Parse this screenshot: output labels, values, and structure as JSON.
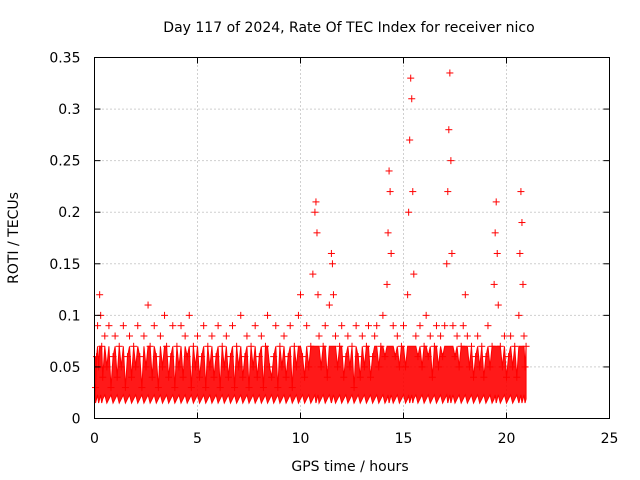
{
  "chart_data": {
    "type": "scatter",
    "title": "Day 117 of 2024, Rate Of TEC Index for receiver nico",
    "xlabel": "GPS time / hours",
    "ylabel": "ROTI / TECUs",
    "xlim": [
      0,
      25
    ],
    "ylim": [
      0,
      0.35
    ],
    "xticks": [
      0,
      5,
      10,
      15,
      20,
      25
    ],
    "xtick_labels": [
      "0",
      "5",
      "10",
      "15",
      "20",
      "25"
    ],
    "yticks": [
      0,
      0.05,
      0.1,
      0.15,
      0.2,
      0.25,
      0.3,
      0.35
    ],
    "ytick_labels": [
      "0",
      "0.05",
      "0.1",
      "0.15",
      "0.2",
      "0.25",
      "0.3",
      "0.35"
    ],
    "grid": true,
    "marker": "plus",
    "color": "#ff0000",
    "series": [
      {
        "name": "ROTI",
        "points": [
          [
            0.05,
            0.03
          ],
          [
            0.1,
            0.06
          ],
          [
            0.15,
            0.09
          ],
          [
            0.2,
            0.05
          ],
          [
            0.25,
            0.12
          ],
          [
            0.3,
            0.1
          ],
          [
            0.35,
            0.07
          ],
          [
            0.4,
            0.04
          ],
          [
            0.5,
            0.08
          ],
          [
            0.6,
            0.05
          ],
          [
            0.7,
            0.09
          ],
          [
            0.8,
            0.03
          ],
          [
            0.9,
            0.06
          ],
          [
            1.0,
            0.08
          ],
          [
            1.1,
            0.04
          ],
          [
            1.2,
            0.07
          ],
          [
            1.3,
            0.05
          ],
          [
            1.4,
            0.09
          ],
          [
            1.5,
            0.03
          ],
          [
            1.6,
            0.06
          ],
          [
            1.7,
            0.08
          ],
          [
            1.8,
            0.04
          ],
          [
            1.9,
            0.07
          ],
          [
            2.0,
            0.05
          ],
          [
            2.1,
            0.09
          ],
          [
            2.2,
            0.06
          ],
          [
            2.3,
            0.03
          ],
          [
            2.4,
            0.08
          ],
          [
            2.5,
            0.05
          ],
          [
            2.6,
            0.11
          ],
          [
            2.7,
            0.07
          ],
          [
            2.8,
            0.04
          ],
          [
            2.9,
            0.09
          ],
          [
            3.0,
            0.06
          ],
          [
            3.1,
            0.03
          ],
          [
            3.2,
            0.08
          ],
          [
            3.3,
            0.05
          ],
          [
            3.4,
            0.1
          ],
          [
            3.5,
            0.07
          ],
          [
            3.6,
            0.04
          ],
          [
            3.7,
            0.06
          ],
          [
            3.8,
            0.09
          ],
          [
            3.9,
            0.03
          ],
          [
            4.0,
            0.07
          ],
          [
            4.1,
            0.05
          ],
          [
            4.2,
            0.09
          ],
          [
            4.3,
            0.04
          ],
          [
            4.4,
            0.08
          ],
          [
            4.5,
            0.06
          ],
          [
            4.6,
            0.1
          ],
          [
            4.7,
            0.03
          ],
          [
            4.8,
            0.07
          ],
          [
            4.9,
            0.05
          ],
          [
            5.0,
            0.08
          ],
          [
            5.1,
            0.04
          ],
          [
            5.2,
            0.06
          ],
          [
            5.3,
            0.09
          ],
          [
            5.4,
            0.03
          ],
          [
            5.5,
            0.07
          ],
          [
            5.6,
            0.05
          ],
          [
            5.7,
            0.08
          ],
          [
            5.8,
            0.04
          ],
          [
            5.9,
            0.06
          ],
          [
            6.0,
            0.09
          ],
          [
            6.1,
            0.03
          ],
          [
            6.2,
            0.07
          ],
          [
            6.3,
            0.05
          ],
          [
            6.4,
            0.08
          ],
          [
            6.5,
            0.04
          ],
          [
            6.6,
            0.06
          ],
          [
            6.7,
            0.09
          ],
          [
            6.8,
            0.03
          ],
          [
            6.9,
            0.07
          ],
          [
            7.0,
            0.05
          ],
          [
            7.1,
            0.1
          ],
          [
            7.2,
            0.04
          ],
          [
            7.3,
            0.06
          ],
          [
            7.4,
            0.08
          ],
          [
            7.5,
            0.03
          ],
          [
            7.6,
            0.07
          ],
          [
            7.7,
            0.05
          ],
          [
            7.8,
            0.09
          ],
          [
            7.9,
            0.04
          ],
          [
            8.0,
            0.06
          ],
          [
            8.1,
            0.08
          ],
          [
            8.2,
            0.03
          ],
          [
            8.3,
            0.07
          ],
          [
            8.4,
            0.1
          ],
          [
            8.5,
            0.05
          ],
          [
            8.6,
            0.04
          ],
          [
            8.7,
            0.06
          ],
          [
            8.8,
            0.09
          ],
          [
            8.9,
            0.03
          ],
          [
            9.0,
            0.07
          ],
          [
            9.1,
            0.05
          ],
          [
            9.2,
            0.08
          ],
          [
            9.3,
            0.04
          ],
          [
            9.4,
            0.06
          ],
          [
            9.5,
            0.09
          ],
          [
            9.6,
            0.03
          ],
          [
            9.7,
            0.07
          ],
          [
            9.8,
            0.05
          ],
          [
            9.9,
            0.1
          ],
          [
            10.0,
            0.12
          ],
          [
            10.1,
            0.06
          ],
          [
            10.2,
            0.04
          ],
          [
            10.3,
            0.09
          ],
          [
            10.4,
            0.05
          ],
          [
            10.5,
            0.07
          ],
          [
            10.6,
            0.14
          ],
          [
            10.7,
            0.2
          ],
          [
            10.75,
            0.21
          ],
          [
            10.8,
            0.18
          ],
          [
            10.85,
            0.12
          ],
          [
            10.9,
            0.08
          ],
          [
            11.0,
            0.05
          ],
          [
            11.1,
            0.07
          ],
          [
            11.2,
            0.09
          ],
          [
            11.3,
            0.04
          ],
          [
            11.4,
            0.11
          ],
          [
            11.5,
            0.16
          ],
          [
            11.55,
            0.15
          ],
          [
            11.6,
            0.12
          ],
          [
            11.7,
            0.08
          ],
          [
            11.8,
            0.05
          ],
          [
            11.9,
            0.07
          ],
          [
            12.0,
            0.09
          ],
          [
            12.1,
            0.04
          ],
          [
            12.2,
            0.06
          ],
          [
            12.3,
            0.08
          ],
          [
            12.4,
            0.05
          ],
          [
            12.5,
            0.07
          ],
          [
            12.6,
            0.03
          ],
          [
            12.7,
            0.09
          ],
          [
            12.8,
            0.06
          ],
          [
            12.9,
            0.04
          ],
          [
            13.0,
            0.08
          ],
          [
            13.1,
            0.05
          ],
          [
            13.2,
            0.07
          ],
          [
            13.3,
            0.09
          ],
          [
            13.4,
            0.04
          ],
          [
            13.5,
            0.06
          ],
          [
            13.6,
            0.08
          ],
          [
            13.7,
            0.09
          ],
          [
            13.8,
            0.05
          ],
          [
            13.9,
            0.07
          ],
          [
            14.0,
            0.1
          ],
          [
            14.1,
            0.06
          ],
          [
            14.2,
            0.13
          ],
          [
            14.25,
            0.18
          ],
          [
            14.3,
            0.24
          ],
          [
            14.35,
            0.22
          ],
          [
            14.4,
            0.16
          ],
          [
            14.5,
            0.09
          ],
          [
            14.6,
            0.06
          ],
          [
            14.7,
            0.08
          ],
          [
            14.8,
            0.05
          ],
          [
            14.9,
            0.07
          ],
          [
            15.0,
            0.09
          ],
          [
            15.1,
            0.05
          ],
          [
            15.2,
            0.12
          ],
          [
            15.25,
            0.2
          ],
          [
            15.3,
            0.27
          ],
          [
            15.35,
            0.33
          ],
          [
            15.4,
            0.31
          ],
          [
            15.45,
            0.22
          ],
          [
            15.5,
            0.14
          ],
          [
            15.6,
            0.08
          ],
          [
            15.7,
            0.06
          ],
          [
            15.8,
            0.09
          ],
          [
            15.9,
            0.05
          ],
          [
            16.0,
            0.07
          ],
          [
            16.1,
            0.1
          ],
          [
            16.2,
            0.06
          ],
          [
            16.3,
            0.08
          ],
          [
            16.4,
            0.04
          ],
          [
            16.5,
            0.07
          ],
          [
            16.6,
            0.09
          ],
          [
            16.7,
            0.05
          ],
          [
            16.8,
            0.08
          ],
          [
            16.9,
            0.06
          ],
          [
            17.0,
            0.09
          ],
          [
            17.1,
            0.15
          ],
          [
            17.15,
            0.22
          ],
          [
            17.2,
            0.28
          ],
          [
            17.25,
            0.335
          ],
          [
            17.3,
            0.25
          ],
          [
            17.35,
            0.16
          ],
          [
            17.4,
            0.09
          ],
          [
            17.5,
            0.06
          ],
          [
            17.6,
            0.08
          ],
          [
            17.7,
            0.05
          ],
          [
            17.8,
            0.07
          ],
          [
            17.9,
            0.09
          ],
          [
            18.0,
            0.12
          ],
          [
            18.1,
            0.08
          ],
          [
            18.2,
            0.05
          ],
          [
            18.3,
            0.07
          ],
          [
            18.4,
            0.04
          ],
          [
            18.5,
            0.06
          ],
          [
            18.6,
            0.08
          ],
          [
            18.7,
            0.05
          ],
          [
            18.8,
            0.07
          ],
          [
            18.9,
            0.04
          ],
          [
            19.0,
            0.06
          ],
          [
            19.1,
            0.09
          ],
          [
            19.2,
            0.05
          ],
          [
            19.3,
            0.07
          ],
          [
            19.4,
            0.13
          ],
          [
            19.45,
            0.18
          ],
          [
            19.5,
            0.21
          ],
          [
            19.55,
            0.16
          ],
          [
            19.6,
            0.11
          ],
          [
            19.7,
            0.07
          ],
          [
            19.8,
            0.05
          ],
          [
            19.9,
            0.08
          ],
          [
            20.0,
            0.04
          ],
          [
            20.1,
            0.06
          ],
          [
            20.2,
            0.08
          ],
          [
            20.3,
            0.05
          ],
          [
            20.4,
            0.07
          ],
          [
            20.5,
            0.04
          ],
          [
            20.6,
            0.1
          ],
          [
            20.65,
            0.16
          ],
          [
            20.7,
            0.22
          ],
          [
            20.75,
            0.19
          ],
          [
            20.8,
            0.13
          ],
          [
            20.85,
            0.08
          ],
          [
            20.9,
            0.05
          ],
          [
            20.95,
            0.07
          ]
        ]
      }
    ]
  }
}
